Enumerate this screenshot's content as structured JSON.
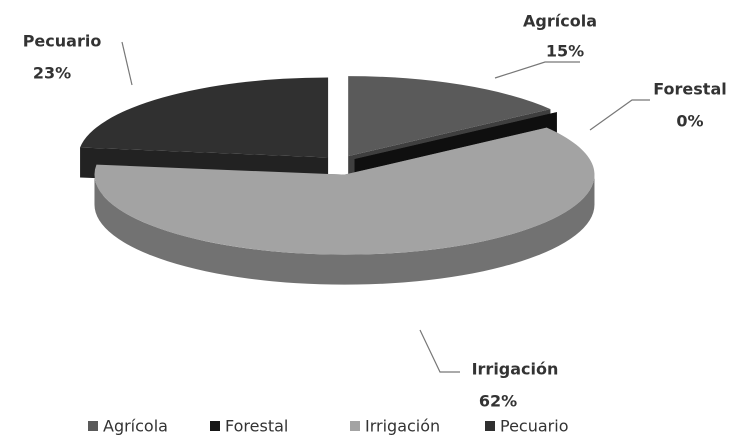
{
  "chart_data": {
    "type": "pie3d",
    "categories": [
      "Agrícola",
      "Forestal",
      "Irrigación",
      "Pecuario"
    ],
    "values": [
      15,
      0,
      62,
      23
    ],
    "value_labels": [
      "15%",
      "0%",
      "62%",
      "23%"
    ],
    "colors": [
      "#5a5a5a",
      "#161616",
      "#a3a3a3",
      "#303030"
    ]
  }
}
